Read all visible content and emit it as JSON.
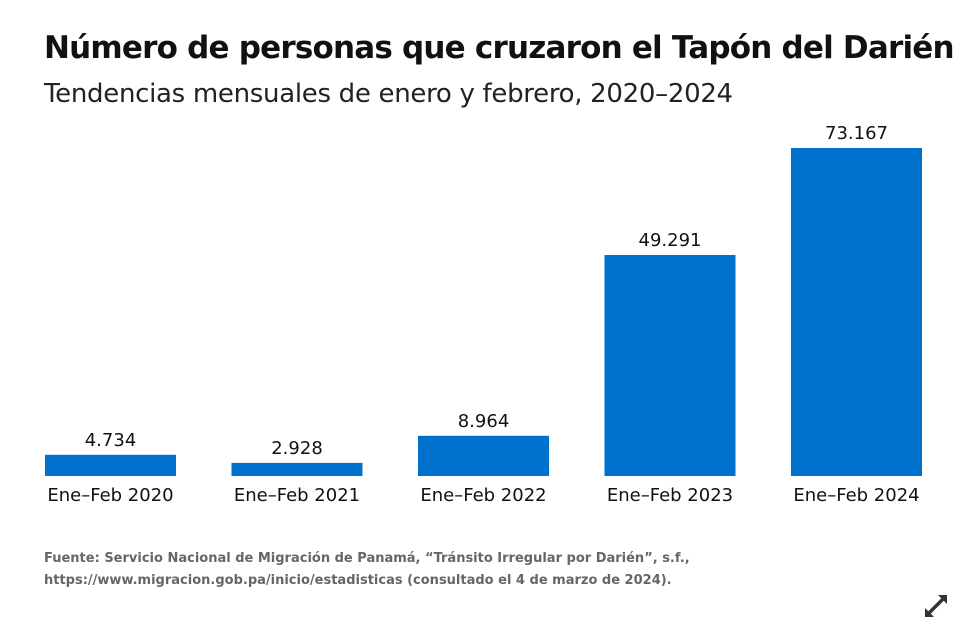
{
  "header": {
    "title": "Número de personas que cruzaron el Tapón del Darién",
    "subtitle": "Tendencias mensuales de enero y febrero, 2020–2024"
  },
  "chart_data": {
    "type": "bar",
    "title": "Número de personas que cruzaron el Tapón del Darién",
    "subtitle": "Tendencias mensuales de enero y febrero, 2020–2024",
    "categories": [
      "Ene–Feb 2020",
      "Ene–Feb 2021",
      "Ene–Feb 2022",
      "Ene–Feb 2023",
      "Ene–Feb 2024"
    ],
    "values": [
      4734,
      2928,
      8964,
      49291,
      73167
    ],
    "data_labels": [
      "4.734",
      "2.928",
      "8.964",
      "49.291",
      "73.167"
    ],
    "xlabel": "",
    "ylabel": "",
    "ylim": [
      0,
      73167
    ],
    "grid": false,
    "y_axis_visible": false,
    "bar_color": "#0072ce"
  },
  "footer": {
    "source_line1": "Fuente: Servicio Nacional de Migración de Panamá, “Tránsito Irregular por Darién”, s.f.,",
    "source_line2": "https://www.migracion.gob.pa/inicio/estadisticas (consultado el 4 de marzo de 2024)."
  },
  "controls": {
    "expand_icon": "expand-icon",
    "icon_color": "#333333"
  }
}
